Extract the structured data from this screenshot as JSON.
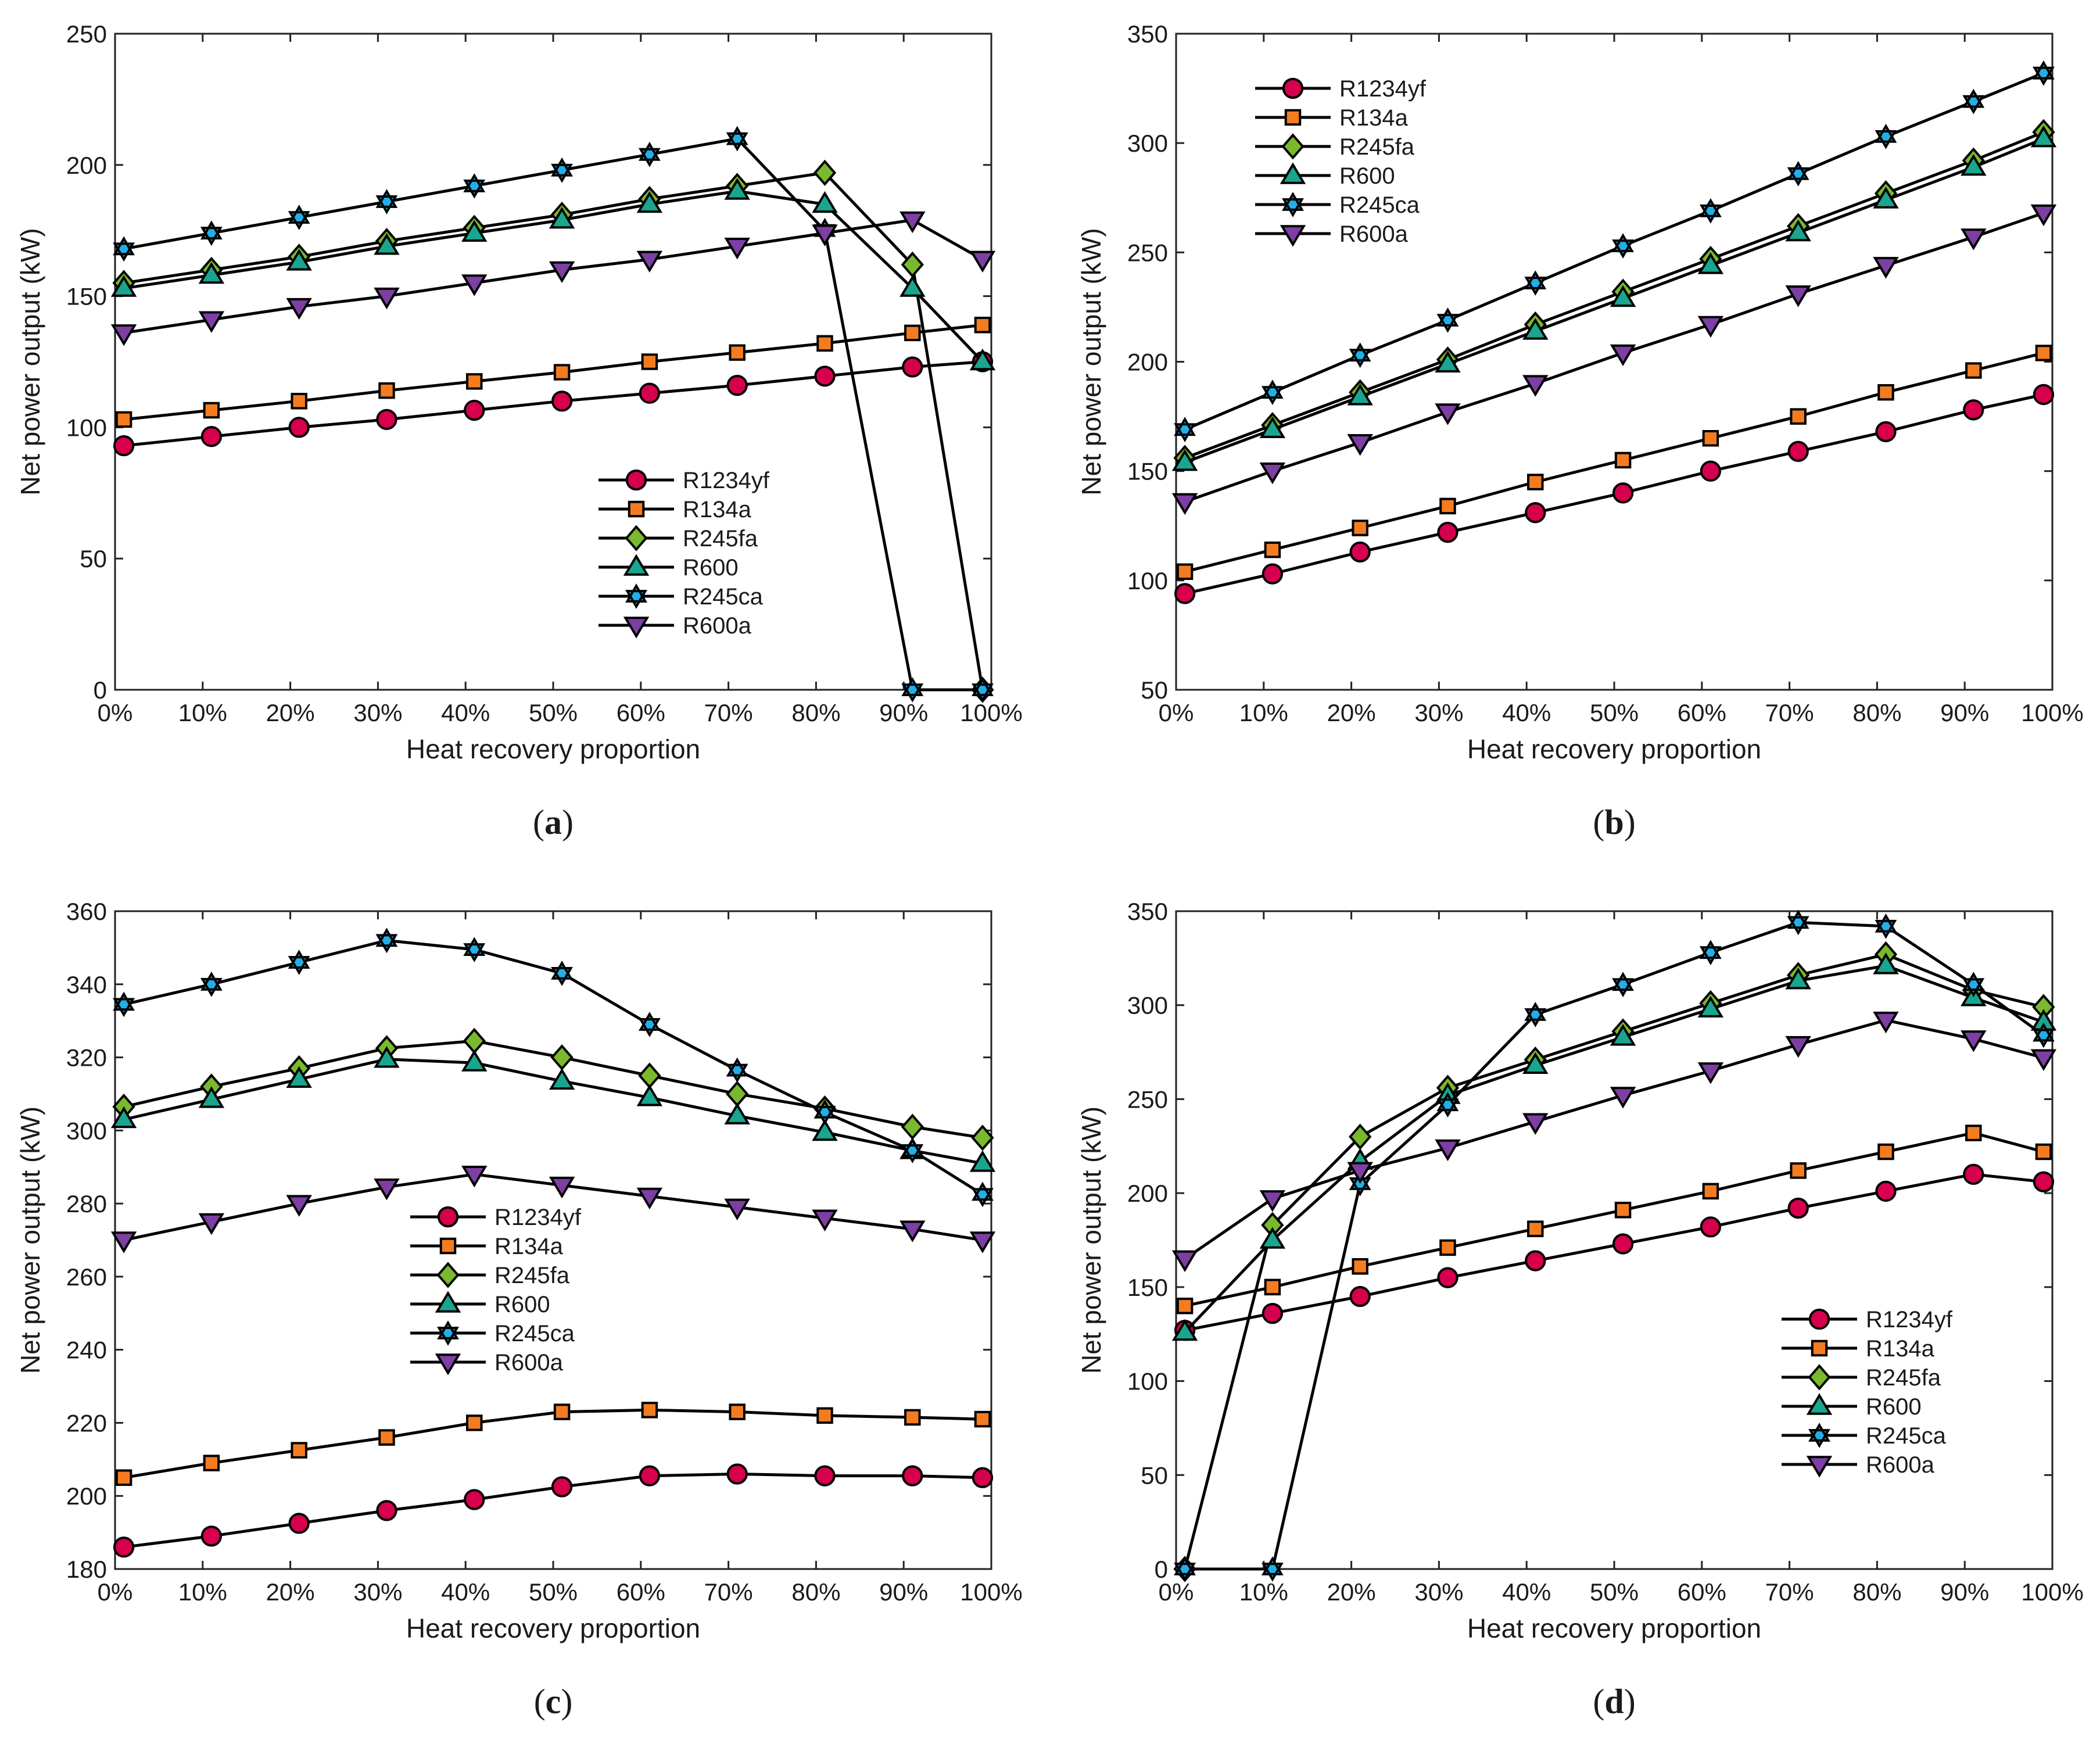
{
  "figure": {
    "series_styles": {
      "R1234yf": {
        "marker": "circle",
        "color": "#d6004f"
      },
      "R134a": {
        "marker": "square",
        "color": "#f47c20"
      },
      "R245fa": {
        "marker": "diamond",
        "color": "#7ab82e"
      },
      "R600": {
        "marker": "triangle-up",
        "color": "#1aa58f"
      },
      "R245ca": {
        "marker": "hexagram",
        "color": "#22aee6"
      },
      "R600a": {
        "marker": "triangle-down",
        "color": "#7d3fa3"
      }
    },
    "line_color": "#000000"
  },
  "chart_data": [
    {
      "id": "a",
      "type": "line",
      "panel_label": "a",
      "xlabel": "Heat recovery proportion",
      "ylabel": "Net power output (kW)",
      "x": [
        1,
        11,
        21,
        31,
        41,
        51,
        61,
        71,
        81,
        91,
        99
      ],
      "xlim": [
        0,
        100
      ],
      "xticks": [
        0,
        10,
        20,
        30,
        40,
        50,
        60,
        70,
        80,
        90,
        100
      ],
      "xtick_labels": [
        "0%",
        "10%",
        "20%",
        "30%",
        "40%",
        "50%",
        "60%",
        "70%",
        "80%",
        "90%",
        "100%"
      ],
      "ylim": [
        0,
        250
      ],
      "yticks": [
        0,
        50,
        100,
        150,
        200,
        250
      ],
      "ytick_labels": [
        "0",
        "50",
        "100",
        "150",
        "200",
        "250"
      ],
      "legend_position": "lower-right",
      "series": [
        {
          "name": "R1234yf",
          "values": [
            93,
            96.5,
            100,
            103,
            106.5,
            110,
            113,
            116,
            119.5,
            123,
            125
          ]
        },
        {
          "name": "R134a",
          "values": [
            103,
            106.5,
            110,
            114,
            117.5,
            121,
            125,
            128.5,
            132,
            136,
            139
          ]
        },
        {
          "name": "R245fa",
          "values": [
            155,
            160,
            165,
            171,
            176,
            181,
            187,
            192,
            197,
            162,
            0
          ]
        },
        {
          "name": "R600",
          "values": [
            153,
            158,
            163,
            169,
            174,
            179,
            185,
            190,
            185,
            153,
            125
          ]
        },
        {
          "name": "R245ca",
          "values": [
            168,
            174,
            180,
            186,
            192,
            198,
            204,
            210,
            175,
            0,
            0
          ]
        },
        {
          "name": "R600a",
          "values": [
            136,
            141,
            146,
            150,
            155,
            160,
            164,
            169,
            174,
            179,
            164
          ]
        }
      ]
    },
    {
      "id": "b",
      "type": "line",
      "panel_label": "b",
      "xlabel": "Heat recovery proportion",
      "ylabel": "Net power output (kW)",
      "x": [
        1,
        11,
        21,
        31,
        41,
        51,
        61,
        71,
        81,
        91,
        99
      ],
      "xlim": [
        0,
        100
      ],
      "xticks": [
        0,
        10,
        20,
        30,
        40,
        50,
        60,
        70,
        80,
        90,
        100
      ],
      "xtick_labels": [
        "0%",
        "10%",
        "20%",
        "30%",
        "40%",
        "50%",
        "60%",
        "70%",
        "80%",
        "90%",
        "100%"
      ],
      "ylim": [
        50,
        350
      ],
      "yticks": [
        50,
        100,
        150,
        200,
        250,
        300,
        350
      ],
      "ytick_labels": [
        "50",
        "100",
        "150",
        "200",
        "250",
        "300",
        "350"
      ],
      "legend_position": "top-left",
      "series": [
        {
          "name": "R1234yf",
          "values": [
            94,
            103,
            113,
            122,
            131,
            140,
            150,
            159,
            168,
            178,
            185
          ]
        },
        {
          "name": "R134a",
          "values": [
            104,
            114,
            124,
            134,
            145,
            155,
            165,
            175,
            186,
            196,
            204
          ]
        },
        {
          "name": "R245fa",
          "values": [
            156,
            171,
            186,
            201,
            217,
            232,
            247,
            262,
            277,
            292,
            305
          ]
        },
        {
          "name": "R600",
          "values": [
            154,
            169,
            184,
            199,
            214,
            229,
            244,
            259,
            274,
            289,
            302
          ]
        },
        {
          "name": "R245ca",
          "values": [
            169,
            186,
            203,
            219,
            236,
            253,
            269,
            286,
            303,
            319,
            332
          ]
        },
        {
          "name": "R600a",
          "values": [
            136,
            150,
            163,
            177,
            190,
            204,
            217,
            231,
            244,
            257,
            268
          ]
        }
      ]
    },
    {
      "id": "c",
      "type": "line",
      "panel_label": "c",
      "xlabel": "Heat recovery proportion",
      "ylabel": "Net power output (kW)",
      "x": [
        1,
        11,
        21,
        31,
        41,
        51,
        61,
        71,
        81,
        91,
        99
      ],
      "xlim": [
        0,
        100
      ],
      "xticks": [
        0,
        10,
        20,
        30,
        40,
        50,
        60,
        70,
        80,
        90,
        100
      ],
      "xtick_labels": [
        "0%",
        "10%",
        "20%",
        "30%",
        "40%",
        "50%",
        "60%",
        "70%",
        "80%",
        "90%",
        "100%"
      ],
      "ylim": [
        180,
        360
      ],
      "yticks": [
        180,
        200,
        220,
        240,
        260,
        280,
        300,
        320,
        340,
        360
      ],
      "ytick_labels": [
        "180",
        "200",
        "220",
        "240",
        "260",
        "280",
        "300",
        "320",
        "340",
        "360"
      ],
      "legend_position": "middle-center",
      "series": [
        {
          "name": "R1234yf",
          "values": [
            186,
            189,
            192.5,
            196,
            199,
            202.5,
            205.5,
            206,
            205.5,
            205.5,
            205
          ]
        },
        {
          "name": "R134a",
          "values": [
            205,
            209,
            212.5,
            216,
            220,
            223,
            223.5,
            223,
            222,
            221.5,
            221
          ]
        },
        {
          "name": "R245fa",
          "values": [
            306.5,
            312,
            317,
            322.5,
            324.5,
            320,
            315,
            310,
            306,
            301,
            298
          ]
        },
        {
          "name": "R600",
          "values": [
            303,
            308.5,
            314,
            319.5,
            318.5,
            313.5,
            309,
            304,
            299.5,
            294.5,
            291
          ]
        },
        {
          "name": "R245ca",
          "values": [
            334.5,
            340,
            346,
            352,
            349.5,
            343,
            329,
            316.5,
            305,
            294.5,
            282.5
          ]
        },
        {
          "name": "R600a",
          "values": [
            270,
            275,
            280,
            284.5,
            288,
            285,
            282,
            279,
            276,
            273,
            270
          ]
        }
      ]
    },
    {
      "id": "d",
      "type": "line",
      "panel_label": "d",
      "xlabel": "Heat recovery proportion",
      "ylabel": "Net power output (kW)",
      "x": [
        1,
        11,
        21,
        31,
        41,
        51,
        61,
        71,
        81,
        91,
        99
      ],
      "xlim": [
        0,
        100
      ],
      "xticks": [
        0,
        10,
        20,
        30,
        40,
        50,
        60,
        70,
        80,
        90,
        100
      ],
      "xtick_labels": [
        "0%",
        "10%",
        "20%",
        "30%",
        "40%",
        "50%",
        "60%",
        "70%",
        "80%",
        "90%",
        "100%"
      ],
      "ylim": [
        0,
        350
      ],
      "yticks": [
        0,
        50,
        100,
        150,
        200,
        250,
        300,
        350
      ],
      "ytick_labels": [
        "0",
        "50",
        "100",
        "150",
        "200",
        "250",
        "300",
        "350"
      ],
      "legend_position": "lower-right",
      "series": [
        {
          "name": "R1234yf",
          "values": [
            127,
            136,
            145,
            155,
            164,
            173,
            182,
            192,
            201,
            210,
            206
          ]
        },
        {
          "name": "R134a",
          "values": [
            140,
            150,
            161,
            171,
            181,
            191,
            201,
            212,
            222,
            232,
            222
          ]
        },
        {
          "name": "R245fa",
          "values": [
            0,
            183,
            230,
            256,
            271,
            286,
            301,
            316,
            327,
            308,
            299
          ]
        },
        {
          "name": "R600",
          "values": [
            126,
            175,
            217,
            252,
            268,
            283,
            298,
            313,
            321,
            304,
            291
          ]
        },
        {
          "name": "R245ca",
          "values": [
            0,
            0,
            205,
            247,
            295,
            311,
            328,
            344,
            342,
            311,
            284
          ]
        },
        {
          "name": "R600a",
          "values": [
            165,
            197,
            212,
            224,
            238,
            252,
            265,
            279,
            292,
            282,
            272
          ]
        }
      ]
    }
  ]
}
